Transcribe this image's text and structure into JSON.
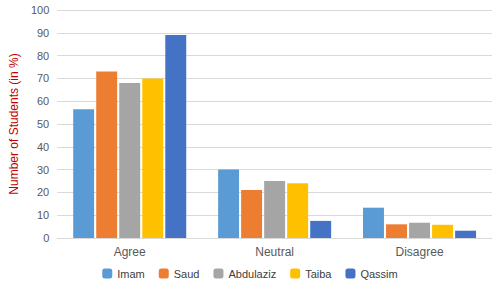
{
  "chart_data": {
    "type": "bar",
    "ylabel": "Number of Students (in %)",
    "categories": [
      "Agree",
      "Neutral",
      "Disagree"
    ],
    "series": [
      {
        "name": "Imam",
        "color": "#5b9bd5",
        "values": [
          56.5,
          30,
          13.3
        ]
      },
      {
        "name": "Saud",
        "color": "#ed7d31",
        "values": [
          73,
          21,
          6
        ]
      },
      {
        "name": "Abdulaziz",
        "color": "#a5a5a5",
        "values": [
          68,
          25,
          6.7
        ]
      },
      {
        "name": "Taiba",
        "color": "#ffc000",
        "values": [
          70,
          24,
          5.8
        ]
      },
      {
        "name": "Qassim",
        "color": "#4472c4",
        "values": [
          89,
          7.5,
          3.2
        ]
      }
    ],
    "ylim": [
      0,
      100
    ],
    "yticks": [
      0,
      10,
      20,
      30,
      40,
      50,
      60,
      70,
      80,
      90,
      100
    ],
    "grid": true,
    "legend": "bottom"
  }
}
